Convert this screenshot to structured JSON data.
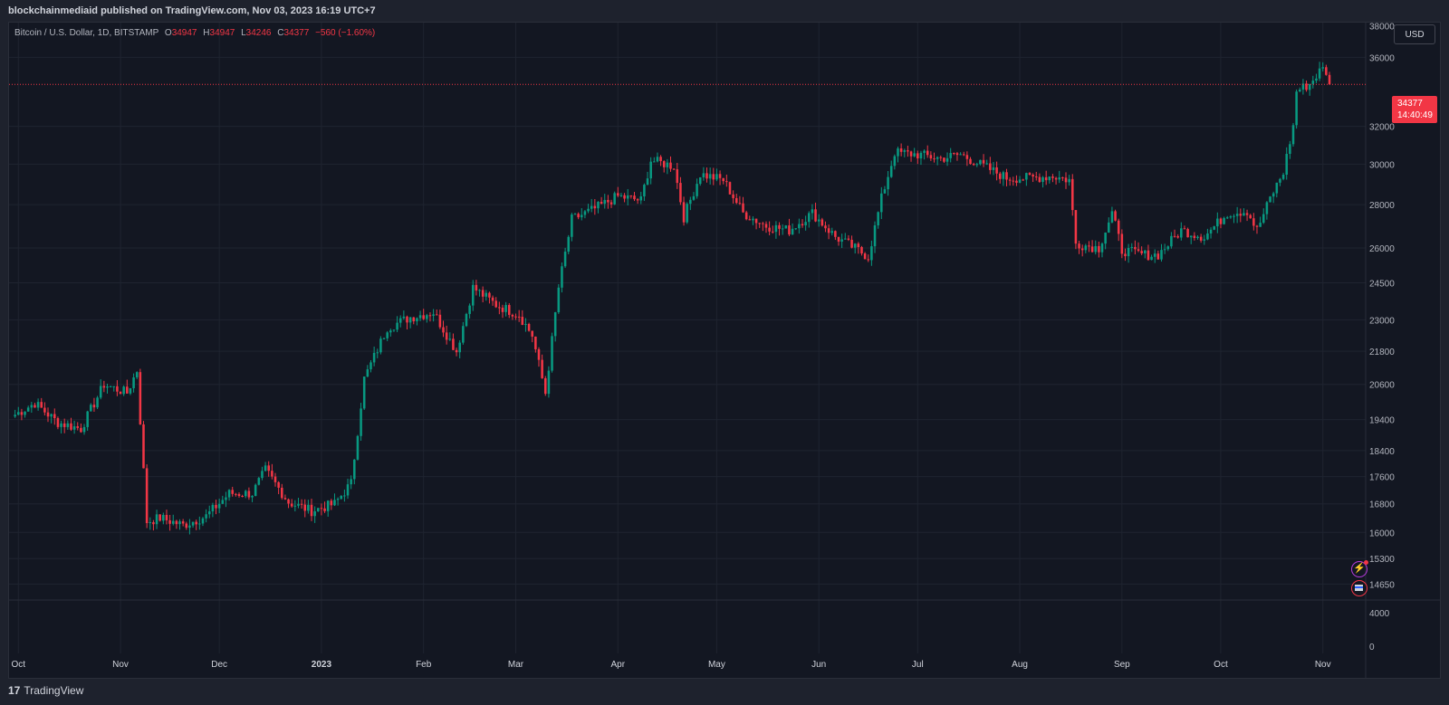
{
  "header": {
    "publisher": "blockchainmediaid published on TradingView.com, Nov 03, 2023 16:19 UTC+7"
  },
  "legend": {
    "symbol": "Bitcoin / U.S. Dollar, 1D, BITSTAMP",
    "o_label": "O",
    "o_value": "34947",
    "h_label": "H",
    "h_value": "34947",
    "l_label": "L",
    "l_value": "34246",
    "c_label": "C",
    "c_value": "34377",
    "change": "−560 (−1.60%)"
  },
  "currency_button": "USD",
  "last_price": {
    "price": "34377",
    "countdown": "14:40:49"
  },
  "footer": {
    "brand": "TradingView",
    "logo_glyph": "17"
  },
  "icons": {
    "event": "lightning-icon",
    "flag": "us-flag-icon"
  },
  "colors": {
    "up": "#089981",
    "down": "#f23645",
    "background": "#131722",
    "grid": "#1f2430",
    "text": "#b2b5be"
  },
  "chart_data": {
    "type": "candlestick",
    "symbol": "BTCUSD",
    "timeframe": "1D",
    "y_scale": "log",
    "ylim": [
      14300,
      38200
    ],
    "y_ticks": [
      36000,
      32000,
      30000,
      28000,
      26000,
      24500,
      23000,
      21800,
      20600,
      19400,
      18400,
      17600,
      16800,
      16000,
      15300,
      14650
    ],
    "y_tick_top_partial": "38000",
    "volume_ticks": [
      4000,
      0
    ],
    "x_start": "2022-09-29",
    "x_end": "2023-11-03",
    "x_ticks": [
      {
        "label": "Oct",
        "date": "2022-10-01"
      },
      {
        "label": "Nov",
        "date": "2022-11-01"
      },
      {
        "label": "Dec",
        "date": "2022-12-01"
      },
      {
        "label": "2023",
        "date": "2023-01-01"
      },
      {
        "label": "Feb",
        "date": "2023-02-01"
      },
      {
        "label": "Mar",
        "date": "2023-03-01"
      },
      {
        "label": "Apr",
        "date": "2023-04-01"
      },
      {
        "label": "May",
        "date": "2023-05-01"
      },
      {
        "label": "Jun",
        "date": "2023-06-01"
      },
      {
        "label": "Jul",
        "date": "2023-07-01"
      },
      {
        "label": "Aug",
        "date": "2023-08-01"
      },
      {
        "label": "Sep",
        "date": "2023-09-01"
      },
      {
        "label": "Oct",
        "date": "2023-10-01"
      },
      {
        "label": "Nov",
        "date": "2023-11-01"
      }
    ],
    "last_price": 34377,
    "grid": true,
    "closes_weekly": [
      {
        "date": "2022-09-29",
        "close": 19500
      },
      {
        "date": "2022-10-06",
        "close": 19950
      },
      {
        "date": "2022-10-13",
        "close": 19300
      },
      {
        "date": "2022-10-20",
        "close": 19100
      },
      {
        "date": "2022-10-27",
        "close": 20600
      },
      {
        "date": "2022-11-03",
        "close": 20300
      },
      {
        "date": "2022-11-06",
        "close": 21100
      },
      {
        "date": "2022-11-09",
        "close": 16300
      },
      {
        "date": "2022-11-13",
        "close": 16400
      },
      {
        "date": "2022-11-20",
        "close": 16200
      },
      {
        "date": "2022-11-27",
        "close": 16450
      },
      {
        "date": "2022-12-04",
        "close": 17100
      },
      {
        "date": "2022-12-11",
        "close": 17100
      },
      {
        "date": "2022-12-15",
        "close": 17800
      },
      {
        "date": "2022-12-22",
        "close": 16850
      },
      {
        "date": "2022-12-29",
        "close": 16600
      },
      {
        "date": "2023-01-05",
        "close": 16800
      },
      {
        "date": "2023-01-10",
        "close": 17400
      },
      {
        "date": "2023-01-14",
        "close": 20800
      },
      {
        "date": "2023-01-21",
        "close": 22700
      },
      {
        "date": "2023-01-28",
        "close": 23100
      },
      {
        "date": "2023-02-04",
        "close": 23300
      },
      {
        "date": "2023-02-11",
        "close": 21800
      },
      {
        "date": "2023-02-16",
        "close": 24300
      },
      {
        "date": "2023-02-23",
        "close": 23600
      },
      {
        "date": "2023-03-02",
        "close": 23200
      },
      {
        "date": "2023-03-06",
        "close": 22400
      },
      {
        "date": "2023-03-10",
        "close": 20300
      },
      {
        "date": "2023-03-14",
        "close": 24300
      },
      {
        "date": "2023-03-18",
        "close": 27300
      },
      {
        "date": "2023-03-25",
        "close": 27800
      },
      {
        "date": "2023-04-01",
        "close": 28400
      },
      {
        "date": "2023-04-08",
        "close": 28200
      },
      {
        "date": "2023-04-11",
        "close": 30200
      },
      {
        "date": "2023-04-18",
        "close": 29900
      },
      {
        "date": "2023-04-21",
        "close": 27400
      },
      {
        "date": "2023-04-26",
        "close": 29500
      },
      {
        "date": "2023-05-03",
        "close": 29200
      },
      {
        "date": "2023-05-09",
        "close": 27600
      },
      {
        "date": "2023-05-16",
        "close": 27000
      },
      {
        "date": "2023-05-23",
        "close": 26800
      },
      {
        "date": "2023-05-30",
        "close": 27600
      },
      {
        "date": "2023-06-06",
        "close": 26500
      },
      {
        "date": "2023-06-13",
        "close": 25900
      },
      {
        "date": "2023-06-16",
        "close": 25600
      },
      {
        "date": "2023-06-20",
        "close": 28300
      },
      {
        "date": "2023-06-24",
        "close": 30600
      },
      {
        "date": "2023-07-01",
        "close": 30500
      },
      {
        "date": "2023-07-08",
        "close": 30300
      },
      {
        "date": "2023-07-14",
        "close": 30500
      },
      {
        "date": "2023-07-21",
        "close": 29900
      },
      {
        "date": "2023-07-28",
        "close": 29300
      },
      {
        "date": "2023-08-04",
        "close": 29300
      },
      {
        "date": "2023-08-11",
        "close": 29400
      },
      {
        "date": "2023-08-16",
        "close": 29200
      },
      {
        "date": "2023-08-18",
        "close": 26200
      },
      {
        "date": "2023-08-25",
        "close": 26000
      },
      {
        "date": "2023-08-29",
        "close": 27600
      },
      {
        "date": "2023-09-01",
        "close": 25900
      },
      {
        "date": "2023-09-08",
        "close": 25700
      },
      {
        "date": "2023-09-12",
        "close": 25700
      },
      {
        "date": "2023-09-19",
        "close": 26800
      },
      {
        "date": "2023-09-26",
        "close": 26500
      },
      {
        "date": "2023-10-03",
        "close": 27600
      },
      {
        "date": "2023-10-09",
        "close": 27700
      },
      {
        "date": "2023-10-12",
        "close": 26800
      },
      {
        "date": "2023-10-16",
        "close": 28300
      },
      {
        "date": "2023-10-20",
        "close": 29600
      },
      {
        "date": "2023-10-23",
        "close": 32000
      },
      {
        "date": "2023-10-24",
        "close": 34000
      },
      {
        "date": "2023-10-28",
        "close": 34400
      },
      {
        "date": "2023-11-01",
        "close": 35400
      },
      {
        "date": "2023-11-02",
        "close": 34937
      },
      {
        "date": "2023-11-03",
        "close": 34377
      }
    ]
  }
}
